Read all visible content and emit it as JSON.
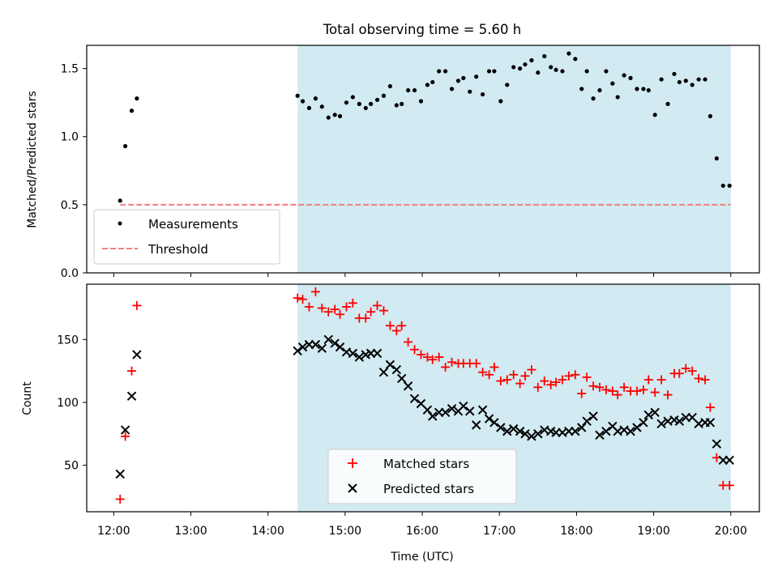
{
  "title": "Total observing time = 5.60 h",
  "colors": {
    "shade": "#add8e6",
    "threshold": "#f08080",
    "matched": "#ff0000",
    "predicted": "#000000"
  },
  "chart_data": [
    {
      "type": "scatter",
      "panel": "top",
      "ylabel": "Matched/Predicted stars",
      "xlim": [
        11.65,
        20.37
      ],
      "ylim": [
        0,
        1.67
      ],
      "yticks": [
        0,
        0.5,
        1.0,
        1.5
      ],
      "ytick_labels": [
        "0.0",
        "0.5",
        "1.0",
        "1.5"
      ],
      "shaded_span": [
        "14:23",
        "20:00"
      ],
      "legend": {
        "placement": "lower-left",
        "entries": [
          "Measurements",
          "Threshold"
        ]
      },
      "threshold": {
        "name": "Threshold",
        "value": 0.5,
        "x_range": [
          "12:05",
          "20:00"
        ]
      },
      "series": [
        {
          "name": "Measurements",
          "marker": "dot",
          "x": [
            "12:05",
            "12:09",
            "12:14",
            "12:18",
            "14:23",
            "14:27",
            "14:32",
            "14:37",
            "14:42",
            "14:47",
            "14:52",
            "14:56",
            "15:01",
            "15:06",
            "15:11",
            "15:16",
            "15:20",
            "15:25",
            "15:30",
            "15:35",
            "15:40",
            "15:44",
            "15:49",
            "15:54",
            "15:59",
            "16:04",
            "16:08",
            "16:13",
            "16:18",
            "16:23",
            "16:28",
            "16:32",
            "16:37",
            "16:42",
            "16:47",
            "16:52",
            "16:56",
            "17:01",
            "17:06",
            "17:11",
            "17:16",
            "17:20",
            "17:25",
            "17:30",
            "17:35",
            "17:40",
            "17:44",
            "17:49",
            "17:54",
            "17:59",
            "18:04",
            "18:08",
            "18:13",
            "18:18",
            "18:23",
            "18:28",
            "18:32",
            "18:37",
            "18:42",
            "18:47",
            "18:52",
            "18:56",
            "19:01",
            "19:06",
            "19:11",
            "19:16",
            "19:20",
            "19:25",
            "19:30",
            "19:35",
            "19:40",
            "19:44",
            "19:49",
            "19:54",
            "19:59"
          ],
          "y": [
            0.53,
            0.93,
            1.19,
            1.28,
            1.3,
            1.26,
            1.21,
            1.28,
            1.22,
            1.14,
            1.16,
            1.15,
            1.25,
            1.29,
            1.24,
            1.21,
            1.24,
            1.27,
            1.3,
            1.37,
            1.23,
            1.24,
            1.34,
            1.34,
            1.26,
            1.38,
            1.4,
            1.48,
            1.48,
            1.35,
            1.41,
            1.43,
            1.33,
            1.44,
            1.31,
            1.48,
            1.48,
            1.26,
            1.38,
            1.51,
            1.5,
            1.53,
            1.56,
            1.47,
            1.59,
            1.51,
            1.49,
            1.48,
            1.61,
            1.57,
            1.35,
            1.48,
            1.28,
            1.34,
            1.48,
            1.39,
            1.29,
            1.45,
            1.43,
            1.35,
            1.35,
            1.34,
            1.16,
            1.42,
            1.24,
            1.46,
            1.4,
            1.41,
            1.38,
            1.42,
            1.42,
            1.15,
            0.84,
            0.64,
            0.64
          ]
        }
      ]
    },
    {
      "type": "scatter",
      "panel": "bottom",
      "xlabel": "Time (UTC)",
      "ylabel": "Count",
      "xlim": [
        11.65,
        20.37
      ],
      "ylim": [
        13,
        194
      ],
      "yticks": [
        50,
        100,
        150
      ],
      "xtick_labels": [
        "12:00",
        "13:00",
        "14:00",
        "15:00",
        "16:00",
        "17:00",
        "18:00",
        "19:00",
        "20:00"
      ],
      "shaded_span": [
        "14:23",
        "20:00"
      ],
      "legend": {
        "placement": "lower-center",
        "entries": [
          "Matched stars",
          "Predicted stars"
        ]
      },
      "series": [
        {
          "name": "Matched stars",
          "marker": "plus",
          "x": [
            "12:05",
            "12:09",
            "12:14",
            "12:18",
            "14:23",
            "14:27",
            "14:32",
            "14:37",
            "14:42",
            "14:47",
            "14:52",
            "14:56",
            "15:01",
            "15:06",
            "15:11",
            "15:16",
            "15:20",
            "15:25",
            "15:30",
            "15:35",
            "15:40",
            "15:44",
            "15:49",
            "15:54",
            "15:59",
            "16:04",
            "16:08",
            "16:13",
            "16:18",
            "16:23",
            "16:28",
            "16:32",
            "16:37",
            "16:42",
            "16:47",
            "16:52",
            "16:56",
            "17:01",
            "17:06",
            "17:11",
            "17:16",
            "17:20",
            "17:25",
            "17:30",
            "17:35",
            "17:40",
            "17:44",
            "17:49",
            "17:54",
            "17:59",
            "18:04",
            "18:08",
            "18:13",
            "18:18",
            "18:23",
            "18:28",
            "18:32",
            "18:37",
            "18:42",
            "18:47",
            "18:52",
            "18:56",
            "19:01",
            "19:06",
            "19:11",
            "19:16",
            "19:20",
            "19:25",
            "19:30",
            "19:35",
            "19:40",
            "19:44",
            "19:49",
            "19:54",
            "19:59"
          ],
          "y": [
            23,
            73,
            125,
            177,
            183,
            182,
            176,
            188,
            175,
            172,
            174,
            170,
            176,
            179,
            167,
            167,
            172,
            177,
            173,
            161,
            157,
            161,
            148,
            142,
            138,
            136,
            134,
            136,
            128,
            132,
            131,
            131,
            131,
            131,
            124,
            122,
            128,
            117,
            118,
            122,
            115,
            121,
            126,
            112,
            117,
            114,
            116,
            118,
            121,
            122,
            107,
            120,
            113,
            112,
            110,
            109,
            106,
            112,
            109,
            109,
            110,
            118,
            108,
            118,
            106,
            123,
            123,
            127,
            125,
            119,
            118,
            96,
            56,
            34,
            34
          ]
        },
        {
          "name": "Predicted stars",
          "marker": "x",
          "x": [
            "12:05",
            "12:09",
            "12:14",
            "12:18",
            "14:23",
            "14:27",
            "14:32",
            "14:37",
            "14:42",
            "14:47",
            "14:52",
            "14:56",
            "15:01",
            "15:06",
            "15:11",
            "15:16",
            "15:20",
            "15:25",
            "15:30",
            "15:35",
            "15:40",
            "15:44",
            "15:49",
            "15:54",
            "15:59",
            "16:04",
            "16:08",
            "16:13",
            "16:18",
            "16:23",
            "16:28",
            "16:32",
            "16:37",
            "16:42",
            "16:47",
            "16:52",
            "16:56",
            "17:01",
            "17:06",
            "17:11",
            "17:16",
            "17:20",
            "17:25",
            "17:30",
            "17:35",
            "17:40",
            "17:44",
            "17:49",
            "17:54",
            "17:59",
            "18:04",
            "18:08",
            "18:13",
            "18:18",
            "18:23",
            "18:28",
            "18:32",
            "18:37",
            "18:42",
            "18:47",
            "18:52",
            "18:56",
            "19:01",
            "19:06",
            "19:11",
            "19:16",
            "19:20",
            "19:25",
            "19:30",
            "19:35",
            "19:40",
            "19:44",
            "19:49",
            "19:54",
            "19:59"
          ],
          "y": [
            43,
            78,
            105,
            138,
            141,
            144,
            146,
            146,
            143,
            150,
            147,
            144,
            140,
            139,
            136,
            138,
            139,
            139,
            124,
            130,
            126,
            119,
            113,
            103,
            99,
            94,
            89,
            92,
            92,
            95,
            93,
            97,
            93,
            82,
            94,
            87,
            84,
            80,
            77,
            79,
            77,
            75,
            73,
            75,
            78,
            77,
            76,
            76,
            77,
            77,
            80,
            85,
            89,
            74,
            77,
            81,
            77,
            78,
            77,
            80,
            84,
            90,
            92,
            83,
            85,
            86,
            85,
            88,
            88,
            83,
            84,
            84,
            67,
            54,
            54
          ]
        }
      ]
    }
  ]
}
